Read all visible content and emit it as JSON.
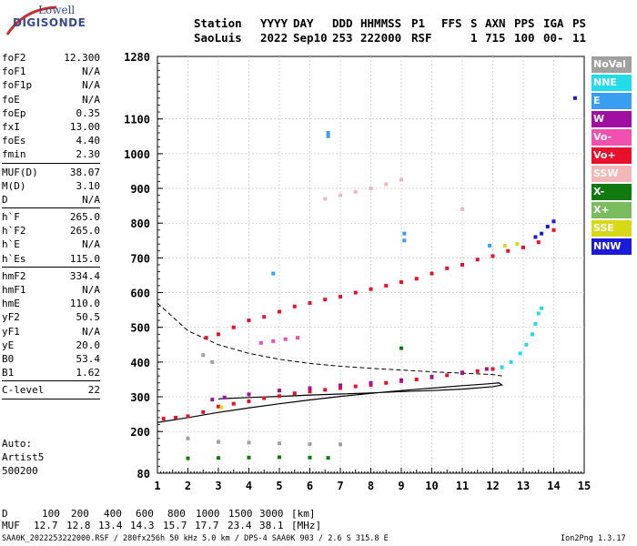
{
  "logo": {
    "line1": "Lowell",
    "line2": "DIGISONDE"
  },
  "header": {
    "labels": [
      "Station",
      "YYYY",
      "DAY",
      "DDD",
      "HHMMSS",
      "P1",
      "FFS",
      "S",
      "AXN",
      "PPS",
      "IGA",
      "PS"
    ],
    "values": [
      "SaoLuis",
      "2022",
      "Sep10",
      "253",
      "222000",
      "RSF",
      "",
      "1",
      "715",
      "100",
      "00-",
      "11"
    ]
  },
  "params": {
    "group1": [
      {
        "name": "foF2",
        "value": "12.300"
      },
      {
        "name": "foF1",
        "value": "N/A"
      },
      {
        "name": "foF1p",
        "value": "N/A"
      },
      {
        "name": "foE",
        "value": "N/A"
      },
      {
        "name": "foEp",
        "value": "0.35"
      },
      {
        "name": "fxI",
        "value": "13.00"
      },
      {
        "name": "foEs",
        "value": "4.40"
      },
      {
        "name": "fmin",
        "value": "2.30"
      }
    ],
    "group2": [
      {
        "name": "MUF(D)",
        "value": "38.07"
      },
      {
        "name": "M(D)",
        "value": "3.10"
      },
      {
        "name": "D",
        "value": "N/A"
      }
    ],
    "group3": [
      {
        "name": "h`F",
        "value": "265.0"
      },
      {
        "name": "h`F2",
        "value": "265.0"
      },
      {
        "name": "h`E",
        "value": "N/A"
      },
      {
        "name": "h`Es",
        "value": "115.0"
      }
    ],
    "group4": [
      {
        "name": "hmF2",
        "value": "334.4"
      },
      {
        "name": "hmF1",
        "value": "N/A"
      },
      {
        "name": "hmE",
        "value": "110.0"
      },
      {
        "name": "yF2",
        "value": "50.5"
      },
      {
        "name": "yF1",
        "value": "N/A"
      },
      {
        "name": "yE",
        "value": "20.0"
      },
      {
        "name": "B0",
        "value": "53.4"
      },
      {
        "name": "B1",
        "value": "1.62"
      }
    ],
    "group5": [
      {
        "name": "C-level",
        "value": "22"
      }
    ]
  },
  "autoscale": {
    "line1": "Auto:",
    "line2": "Artist5",
    "line3": "500200"
  },
  "legend": [
    {
      "label": "NoVal",
      "color": "#a0a0a0"
    },
    {
      "label": "NNE",
      "color": "#22dde8"
    },
    {
      "label": "E",
      "color": "#3a9ef0"
    },
    {
      "label": "W",
      "color": "#a010a0"
    },
    {
      "label": "Vo-",
      "color": "#f050b0"
    },
    {
      "label": "Vo+",
      "color": "#e8102a"
    },
    {
      "label": "SSW",
      "color": "#f2b8b8"
    },
    {
      "label": "X-",
      "color": "#107a10"
    },
    {
      "label": "X+",
      "color": "#7cbc60"
    },
    {
      "label": "SSE",
      "color": "#d8d818"
    },
    {
      "label": "NNW",
      "color": "#1a1ad8"
    }
  ],
  "footer": {
    "distance_row": [
      "D",
      "100",
      "200",
      "400",
      "600",
      "800",
      "1000",
      "1500",
      "3000",
      "[km]"
    ],
    "muf_row": [
      "MUF",
      "12.7",
      "12.8",
      "13.4",
      "14.3",
      "15.7",
      "17.7",
      "23.4",
      "38.1",
      "[MHz]"
    ],
    "info": "SAA0K_2022253222000.RSF / 280fx256h 50 kHz 5.0 km / DPS-4 SAA0K 903 / 2.6 S 315.8 E",
    "version": "Ion2Png 1.3.17"
  },
  "chart_data": {
    "type": "scatter",
    "x_ticks": [
      1,
      2,
      3,
      4,
      5,
      6,
      7,
      8,
      9,
      10,
      11,
      12,
      13,
      14,
      15
    ],
    "y_ticks": [
      80,
      200,
      300,
      400,
      500,
      600,
      700,
      800,
      900,
      1000,
      1100,
      1280
    ],
    "xlim": [
      1,
      15
    ],
    "ylim": [
      80,
      1280
    ],
    "grid": true,
    "series": [
      {
        "name": "Vo+",
        "points": [
          [
            1.2,
            237
          ],
          [
            1.6,
            240
          ],
          [
            2.0,
            244
          ],
          [
            2.5,
            256
          ],
          [
            3.0,
            272
          ],
          [
            3.5,
            280
          ],
          [
            4.0,
            287
          ],
          [
            4.5,
            296
          ],
          [
            5.0,
            302
          ],
          [
            5.5,
            310
          ],
          [
            6.0,
            315
          ],
          [
            6.5,
            320
          ],
          [
            7.0,
            325
          ],
          [
            7.5,
            330
          ],
          [
            8.0,
            334
          ],
          [
            8.5,
            340
          ],
          [
            9.0,
            345
          ],
          [
            9.5,
            350
          ],
          [
            10.0,
            356
          ],
          [
            10.5,
            362
          ],
          [
            11.0,
            368
          ],
          [
            11.5,
            374
          ],
          [
            12.0,
            380
          ],
          [
            12.3,
            385
          ]
        ]
      },
      {
        "name": "W",
        "points": [
          [
            2.8,
            292
          ],
          [
            3.2,
            298
          ],
          [
            4.0,
            307
          ],
          [
            5.0,
            318
          ],
          [
            6.0,
            325
          ],
          [
            7.0,
            333
          ],
          [
            8.0,
            340
          ],
          [
            9.0,
            348
          ],
          [
            10.0,
            358
          ],
          [
            11.0,
            370
          ],
          [
            11.8,
            380
          ]
        ]
      },
      {
        "name": "NNE",
        "points": [
          [
            12.3,
            385
          ],
          [
            12.6,
            400
          ],
          [
            12.9,
            425
          ],
          [
            13.1,
            450
          ],
          [
            13.3,
            480
          ],
          [
            13.4,
            510
          ],
          [
            13.5,
            540
          ],
          [
            13.6,
            555
          ]
        ]
      },
      {
        "name": "Vo+",
        "points": [
          [
            2.6,
            470
          ],
          [
            3.0,
            480
          ],
          [
            3.5,
            500
          ],
          [
            4.0,
            520
          ],
          [
            4.5,
            530
          ],
          [
            5.0,
            545
          ],
          [
            5.5,
            560
          ],
          [
            6.0,
            570
          ],
          [
            6.5,
            580
          ],
          [
            7.0,
            588
          ],
          [
            7.5,
            600
          ],
          [
            8.0,
            610
          ],
          [
            8.5,
            620
          ],
          [
            9.0,
            630
          ],
          [
            9.5,
            640
          ],
          [
            10.0,
            655
          ],
          [
            10.5,
            670
          ],
          [
            11.0,
            680
          ],
          [
            11.5,
            695
          ],
          [
            12.0,
            705
          ],
          [
            12.5,
            720
          ],
          [
            13.0,
            730
          ],
          [
            13.5,
            745
          ],
          [
            14.0,
            780
          ]
        ]
      },
      {
        "name": "Vo-",
        "points": [
          [
            4.4,
            455
          ],
          [
            4.8,
            460
          ],
          [
            5.2,
            466
          ],
          [
            5.6,
            470
          ]
        ]
      },
      {
        "name": "SSW",
        "points": [
          [
            6.5,
            870
          ],
          [
            7.0,
            880
          ],
          [
            7.5,
            890
          ],
          [
            8.0,
            900
          ],
          [
            8.5,
            912
          ],
          [
            9.0,
            925
          ],
          [
            11.0,
            840
          ]
        ]
      },
      {
        "name": "NNW",
        "points": [
          [
            13.4,
            760
          ],
          [
            13.6,
            770
          ],
          [
            13.8,
            790
          ],
          [
            14.0,
            805
          ],
          [
            14.7,
            1160
          ]
        ]
      },
      {
        "name": "E",
        "points": [
          [
            6.6,
            1060
          ],
          [
            6.6,
            1050
          ],
          [
            9.1,
            770
          ],
          [
            9.1,
            750
          ],
          [
            4.8,
            655
          ],
          [
            11.9,
            735
          ]
        ]
      },
      {
        "name": "NoVal",
        "points": [
          [
            2.0,
            180
          ],
          [
            3.0,
            170
          ],
          [
            4.0,
            168
          ],
          [
            5.0,
            166
          ],
          [
            6.0,
            164
          ],
          [
            7.0,
            163
          ],
          [
            2.5,
            420
          ],
          [
            2.8,
            400
          ]
        ]
      },
      {
        "name": "X-",
        "points": [
          [
            2.0,
            123
          ],
          [
            3.0,
            124
          ],
          [
            4.0,
            125
          ],
          [
            5.0,
            126
          ],
          [
            6.0,
            125
          ],
          [
            6.6,
            124
          ],
          [
            9.0,
            440
          ]
        ]
      },
      {
        "name": "SSE",
        "points": [
          [
            12.4,
            735
          ],
          [
            12.8,
            740
          ],
          [
            3.1,
            270
          ]
        ]
      }
    ],
    "profile_line": [
      [
        1,
        226
      ],
      [
        2,
        240
      ],
      [
        3,
        255
      ],
      [
        4,
        268
      ],
      [
        5,
        280
      ],
      [
        6,
        291
      ],
      [
        7,
        301
      ],
      [
        8,
        310
      ],
      [
        9,
        318
      ],
      [
        10,
        325
      ],
      [
        11,
        332
      ],
      [
        11.8,
        337
      ],
      [
        12.2,
        340
      ],
      [
        12.3,
        334
      ],
      [
        12.0,
        329
      ],
      [
        11.0,
        322
      ],
      [
        10.0,
        318
      ],
      [
        9.0,
        315
      ],
      [
        8.0,
        311
      ],
      [
        7.0,
        308
      ],
      [
        6.0,
        305
      ],
      [
        5.0,
        301
      ],
      [
        4.0,
        298
      ],
      [
        3.0,
        294
      ]
    ],
    "profile_dashed": [
      [
        1,
        570
      ],
      [
        2,
        490
      ],
      [
        3,
        450
      ],
      [
        4,
        425
      ],
      [
        5,
        408
      ],
      [
        6,
        396
      ],
      [
        7,
        388
      ],
      [
        8,
        382
      ],
      [
        9,
        377
      ],
      [
        10,
        372
      ],
      [
        11,
        368
      ],
      [
        12,
        364
      ],
      [
        12.3,
        360
      ]
    ]
  }
}
